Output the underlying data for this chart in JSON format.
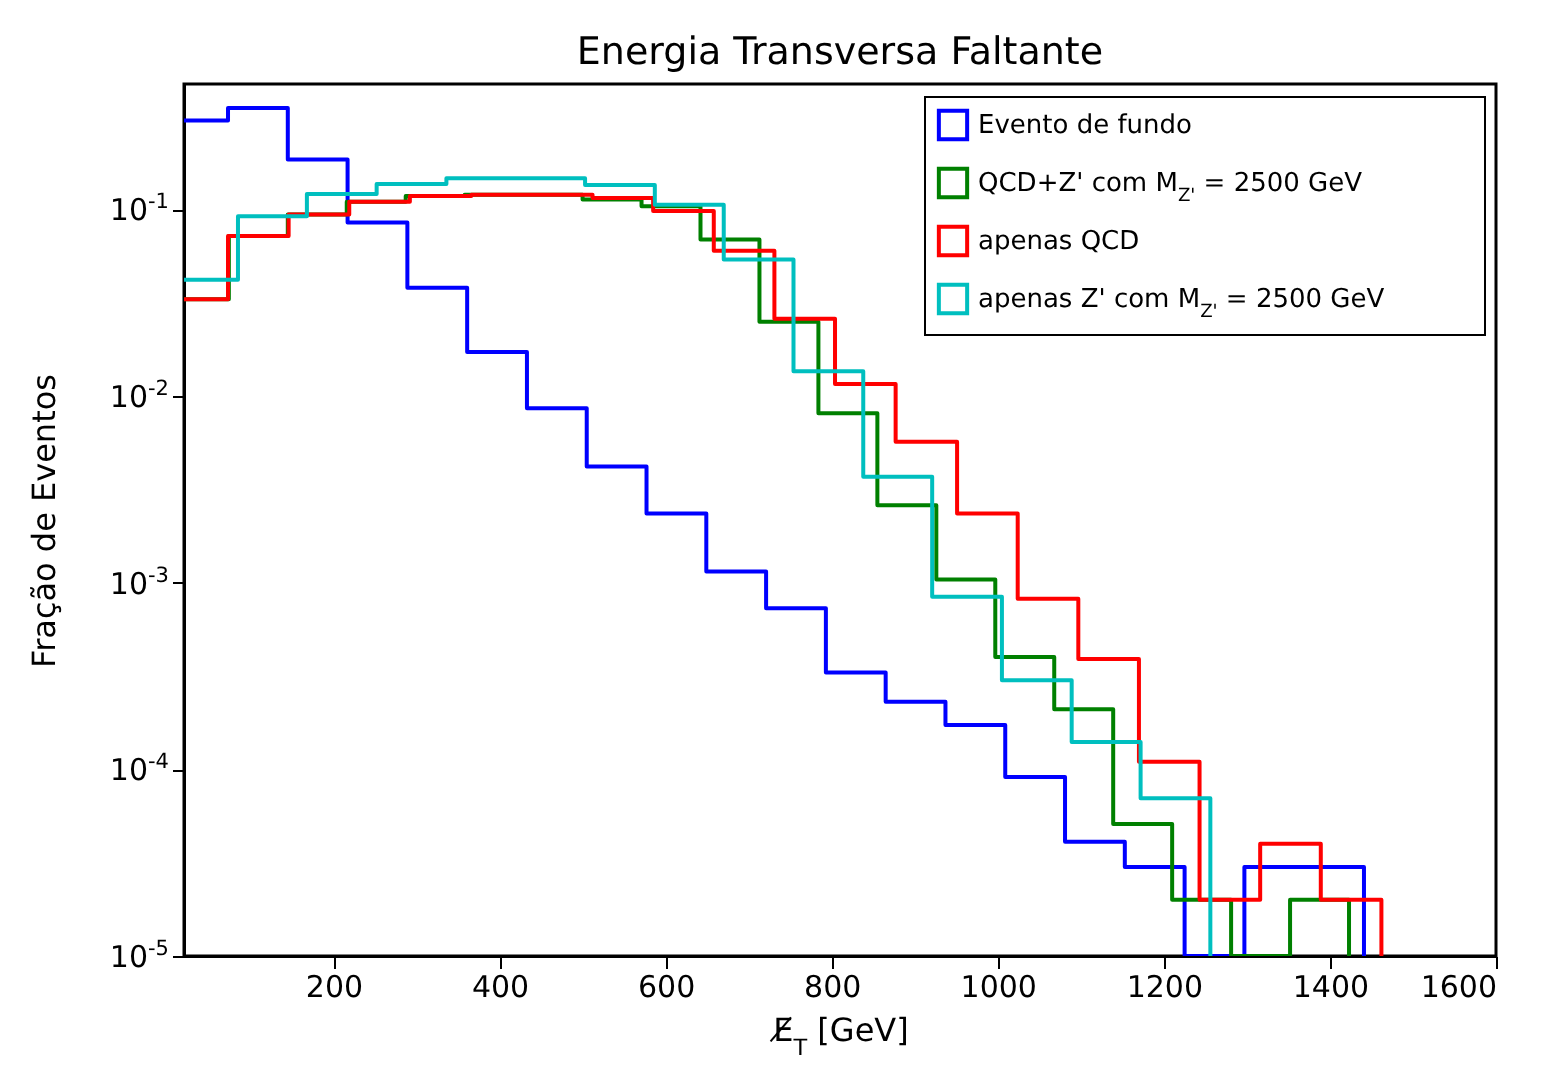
{
  "chart_data": {
    "type": "step",
    "title": "Energia Transversa Faltante",
    "xlabel": "E̸$_{T}$ [GeV]",
    "ylabel": "Fração de Eventos",
    "xlim": [
      20,
      1600
    ],
    "xticks": [
      200,
      400,
      600,
      800,
      1000,
      1200,
      1400,
      1600
    ],
    "ylim": [
      1e-05,
      0.47
    ],
    "yticks": [
      {
        "value": 1e-05,
        "label": "10$^{-5}$"
      },
      {
        "value": 0.0001,
        "label": "10$^{-4}$"
      },
      {
        "value": 0.001,
        "label": "10$^{-3}$"
      },
      {
        "value": 0.01,
        "label": "10$^{-2}$"
      },
      {
        "value": 0.1,
        "label": "10$^{-1}$"
      }
    ],
    "log": "y",
    "legend": "top right",
    "series": [
      {
        "name": "Evento de fundo",
        "color": "#0000ff",
        "x": [
          20,
          73,
          145,
          217,
          289,
          361,
          433,
          505,
          577,
          649,
          721,
          793,
          865,
          937,
          1009,
          1081,
          1153,
          1225,
          1297,
          1369,
          1441
        ],
        "values": [
          0.3,
          0.35,
          0.185,
          0.085,
          0.038,
          0.0172,
          0.0086,
          0.0042,
          0.00235,
          0.00115,
          0.00073,
          0.00033,
          0.00023,
          0.000173,
          9.1e-05,
          4.1e-05,
          3e-05,
          1e-05,
          3e-05,
          3e-05,
          1e-05
        ]
      },
      {
        "name": "QCD+Z' com M$_{Z'}$ = 2500 GeV",
        "color": "#008000",
        "x": [
          20,
          74,
          145,
          216,
          287,
          358,
          429,
          500,
          571,
          642,
          713,
          784,
          855,
          926,
          997,
          1068,
          1139,
          1210,
          1281,
          1352,
          1423
        ],
        "values": [
          0.033,
          0.072,
          0.094,
          0.11,
          0.118,
          0.12,
          0.12,
          0.113,
          0.104,
          0.069,
          0.025,
          0.0081,
          0.0026,
          0.00104,
          0.0004,
          0.00021,
          5.1e-05,
          2e-05,
          1e-05,
          2e-05,
          1e-05
        ]
      },
      {
        "name": "apenas QCD",
        "color": "#ff0000",
        "x": [
          20,
          73,
          146,
          219,
          292,
          366,
          439,
          512,
          585,
          658,
          731,
          804,
          877,
          951,
          1024,
          1097,
          1170,
          1243,
          1316,
          1389,
          1462
        ],
        "values": [
          0.033,
          0.072,
          0.094,
          0.11,
          0.118,
          0.12,
          0.12,
          0.115,
          0.098,
          0.06,
          0.026,
          0.0116,
          0.0057,
          0.00235,
          0.00082,
          0.00039,
          0.00011,
          2e-05,
          4e-05,
          2e-05,
          1e-05
        ]
      },
      {
        "name": "apenas Z' com M$_{Z'}$ = 2500 GeV",
        "color": "#00bfbf",
        "x": [
          20,
          85,
          168,
          252,
          336,
          419,
          503,
          587,
          670,
          754,
          838,
          921,
          1005,
          1089,
          1172,
          1256
        ],
        "values": [
          0.042,
          0.092,
          0.121,
          0.137,
          0.147,
          0.147,
          0.135,
          0.106,
          0.054,
          0.0136,
          0.0037,
          0.00084,
          0.0003,
          0.00014,
          7e-05,
          1e-05
        ]
      }
    ]
  }
}
